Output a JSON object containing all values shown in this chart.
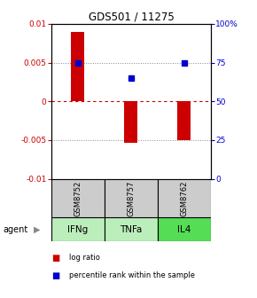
{
  "title": "GDS501 / 11275",
  "samples": [
    "GSM8752",
    "GSM8757",
    "GSM8762"
  ],
  "agents": [
    "IFNg",
    "TNFa",
    "IL4"
  ],
  "log_ratios": [
    0.009,
    -0.0053,
    -0.005
  ],
  "percentile_ranks": [
    0.75,
    0.65,
    0.75
  ],
  "bar_color": "#cc0000",
  "dot_color": "#0000cc",
  "ylim_left": [
    -0.01,
    0.01
  ],
  "ylim_right": [
    0,
    1
  ],
  "yticks_left": [
    -0.01,
    -0.005,
    0,
    0.005,
    0.01
  ],
  "yticks_right": [
    0,
    0.25,
    0.5,
    0.75,
    1.0
  ],
  "ytick_labels_right": [
    "0",
    "25",
    "50",
    "75",
    "100%"
  ],
  "ytick_labels_left": [
    "-0.01",
    "-0.005",
    "0",
    "0.005",
    "0.01"
  ],
  "grid_yticks": [
    -0.005,
    0,
    0.005
  ],
  "zero_line_color": "#cc0000",
  "cell_color_gsm": "#cccccc",
  "cell_color_agent_1": "#bbeebb",
  "cell_color_agent_2": "#bbeebb",
  "cell_color_agent_3": "#55dd55",
  "agent_label": "agent",
  "legend_items": [
    "log ratio",
    "percentile rank within the sample"
  ],
  "bar_width": 0.25
}
